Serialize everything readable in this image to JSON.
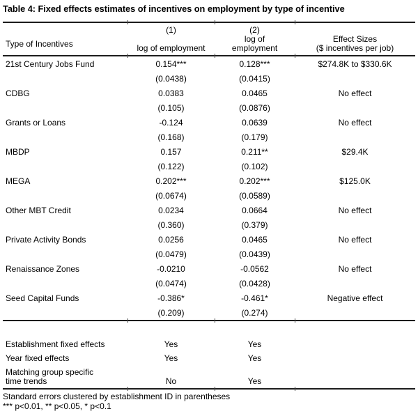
{
  "title": "Table 4: Fixed effects estimates of incentives on employment by type of incentive",
  "colors": {
    "text": "#000000",
    "background": "#ffffff",
    "rule": "#1c1c1c"
  },
  "table": {
    "header": {
      "type_col": "Type of Incentives",
      "col1": {
        "num": "(1)",
        "sub": "log of employment"
      },
      "col2": {
        "num": "(2)",
        "sub1": "log of",
        "sub2": "employment"
      },
      "col3": {
        "line1": "Effect Sizes",
        "line2": "($ incentives per job)"
      }
    },
    "rows": [
      {
        "label": "21st Century Jobs Fund",
        "m1": "0.154***",
        "m2": "0.128***",
        "effect": "$274.8K to $330.6K",
        "se1": "(0.0438)",
        "se2": "(0.0415)"
      },
      {
        "label": "CDBG",
        "m1": "0.0383",
        "m2": "0.0465",
        "effect": "No effect",
        "se1": "(0.105)",
        "se2": "(0.0876)"
      },
      {
        "label": "Grants or Loans",
        "m1": "-0.124",
        "m2": "0.0639",
        "effect": "No effect",
        "se1": "(0.168)",
        "se2": "(0.179)"
      },
      {
        "label": "MBDP",
        "m1": "0.157",
        "m2": "0.211**",
        "effect": "$29.4K",
        "se1": "(0.122)",
        "se2": "(0.102)"
      },
      {
        "label": "MEGA",
        "m1": "0.202***",
        "m2": "0.202***",
        "effect": "$125.0K",
        "se1": "(0.0674)",
        "se2": "(0.0589)"
      },
      {
        "label": "Other MBT Credit",
        "m1": "0.0234",
        "m2": "0.0664",
        "effect": "No effect",
        "se1": "(0.360)",
        "se2": "(0.379)"
      },
      {
        "label": "Private Activity Bonds",
        "m1": "0.0256",
        "m2": "0.0465",
        "effect": "No effect",
        "se1": "(0.0479)",
        "se2": "(0.0439)"
      },
      {
        "label": "Renaissance Zones",
        "m1": "-0.0210",
        "m2": "-0.0562",
        "effect": "No effect",
        "se1": "(0.0474)",
        "se2": "(0.0428)"
      },
      {
        "label": "Seed Capital Funds",
        "m1": "-0.386*",
        "m2": "-0.461*",
        "effect": "Negative effect",
        "se1": "(0.209)",
        "se2": "(0.274)"
      }
    ],
    "fixed_effects": [
      {
        "label1": "Establishment fixed effects",
        "label2": "",
        "v1": "Yes",
        "v2": "Yes"
      },
      {
        "label1": "Year fixed effects",
        "label2": "",
        "v1": "Yes",
        "v2": "Yes"
      },
      {
        "label1": "Matching group specific",
        "label2": "time trends",
        "v1": "No",
        "v2": "Yes"
      }
    ],
    "notes": [
      "Standard errors clustered by establishment ID in parentheses",
      "*** p<0.01, ** p<0.05, * p<0.1"
    ]
  }
}
